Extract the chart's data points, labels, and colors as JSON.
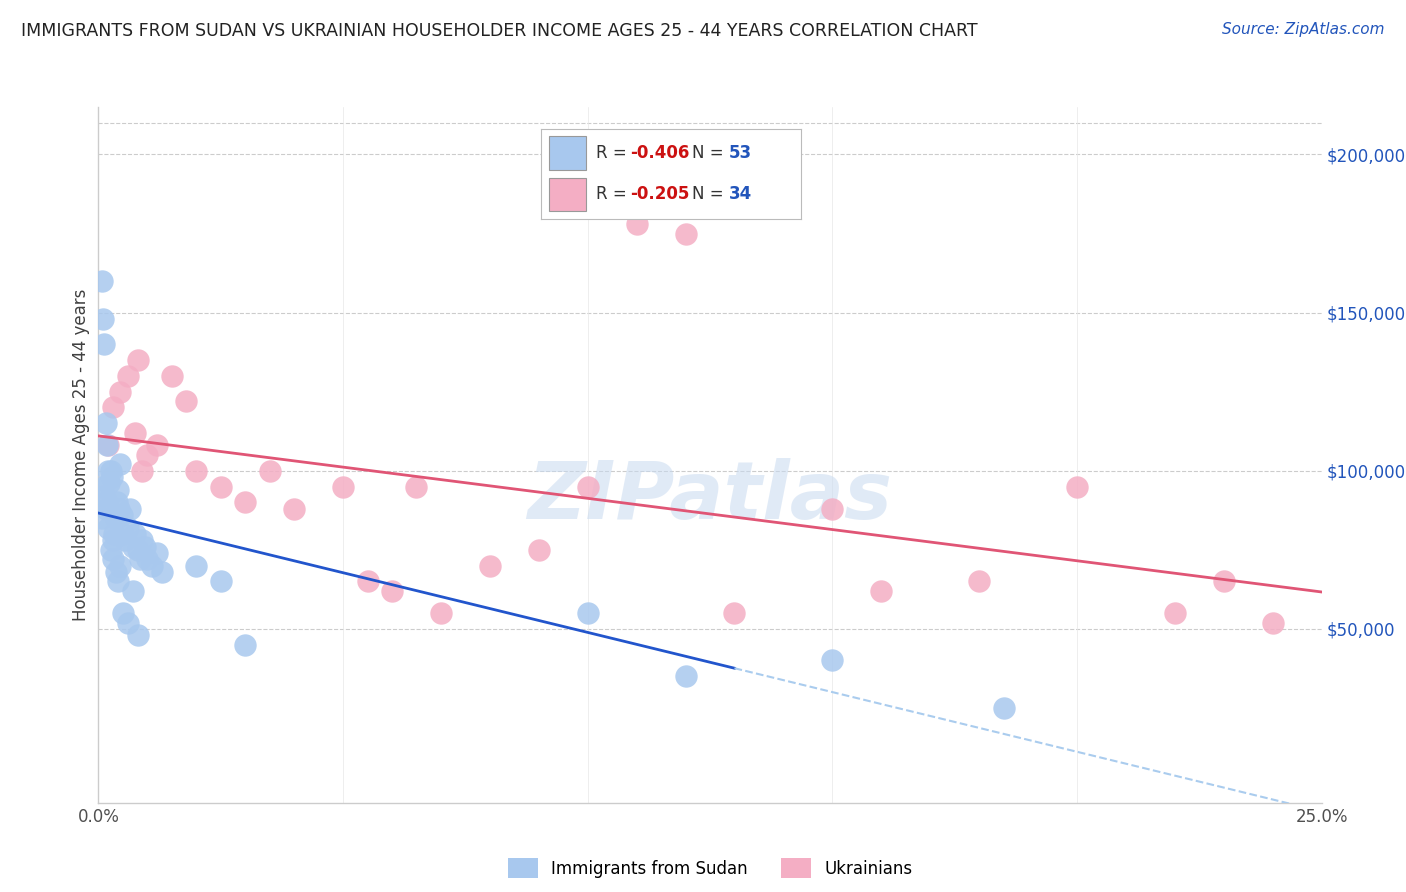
{
  "title": "IMMIGRANTS FROM SUDAN VS UKRAINIAN HOUSEHOLDER INCOME AGES 25 - 44 YEARS CORRELATION CHART",
  "source": "Source: ZipAtlas.com",
  "ylabel": "Householder Income Ages 25 - 44 years",
  "xlabel_ticks": [
    "0.0%",
    "",
    "",
    "",
    "",
    "25.0%"
  ],
  "xlabel_vals": [
    0.0,
    0.05,
    0.1,
    0.15,
    0.2,
    0.25
  ],
  "right_ytick_labels": [
    "$50,000",
    "$100,000",
    "$150,000",
    "$200,000"
  ],
  "right_ytick_vals": [
    50000,
    100000,
    150000,
    200000
  ],
  "xlim": [
    0.0,
    0.25
  ],
  "ylim": [
    -5000,
    215000
  ],
  "sudan_R": -0.406,
  "sudan_N": 53,
  "ukraine_R": -0.205,
  "ukraine_N": 34,
  "sudan_color": "#a8c8ee",
  "ukraine_color": "#f4aec4",
  "sudan_line_color": "#2255cc",
  "ukraine_line_color": "#e05575",
  "dashed_line_color": "#aaccee",
  "watermark_color": "#c8daf0",
  "sudan_x": [
    0.0008,
    0.001,
    0.0012,
    0.0015,
    0.0018,
    0.002,
    0.0022,
    0.0025,
    0.0028,
    0.003,
    0.0032,
    0.0035,
    0.0038,
    0.004,
    0.0042,
    0.0045,
    0.0048,
    0.005,
    0.0055,
    0.006,
    0.0065,
    0.007,
    0.0075,
    0.008,
    0.0085,
    0.009,
    0.0095,
    0.01,
    0.011,
    0.012,
    0.013,
    0.0008,
    0.001,
    0.0012,
    0.0015,
    0.0018,
    0.002,
    0.0025,
    0.003,
    0.0035,
    0.004,
    0.0045,
    0.005,
    0.006,
    0.007,
    0.008,
    0.02,
    0.025,
    0.03,
    0.1,
    0.12,
    0.15,
    0.185
  ],
  "sudan_y": [
    85000,
    95000,
    92000,
    88000,
    90000,
    82000,
    96000,
    100000,
    98000,
    78000,
    80000,
    85000,
    90000,
    94000,
    88000,
    102000,
    86000,
    80000,
    78000,
    82000,
    88000,
    76000,
    80000,
    75000,
    72000,
    78000,
    76000,
    72000,
    70000,
    74000,
    68000,
    160000,
    148000,
    140000,
    115000,
    108000,
    100000,
    75000,
    72000,
    68000,
    65000,
    70000,
    55000,
    52000,
    62000,
    48000,
    70000,
    65000,
    45000,
    55000,
    35000,
    40000,
    25000
  ],
  "ukraine_x": [
    0.002,
    0.003,
    0.0045,
    0.006,
    0.0075,
    0.008,
    0.009,
    0.01,
    0.012,
    0.015,
    0.018,
    0.02,
    0.025,
    0.03,
    0.035,
    0.04,
    0.05,
    0.055,
    0.06,
    0.065,
    0.07,
    0.08,
    0.09,
    0.1,
    0.11,
    0.12,
    0.13,
    0.15,
    0.16,
    0.18,
    0.2,
    0.22,
    0.23,
    0.24
  ],
  "ukraine_y": [
    108000,
    120000,
    125000,
    130000,
    112000,
    135000,
    100000,
    105000,
    108000,
    130000,
    122000,
    100000,
    95000,
    90000,
    100000,
    88000,
    95000,
    65000,
    62000,
    95000,
    55000,
    70000,
    75000,
    95000,
    178000,
    175000,
    55000,
    88000,
    62000,
    65000,
    95000,
    55000,
    65000,
    52000
  ]
}
